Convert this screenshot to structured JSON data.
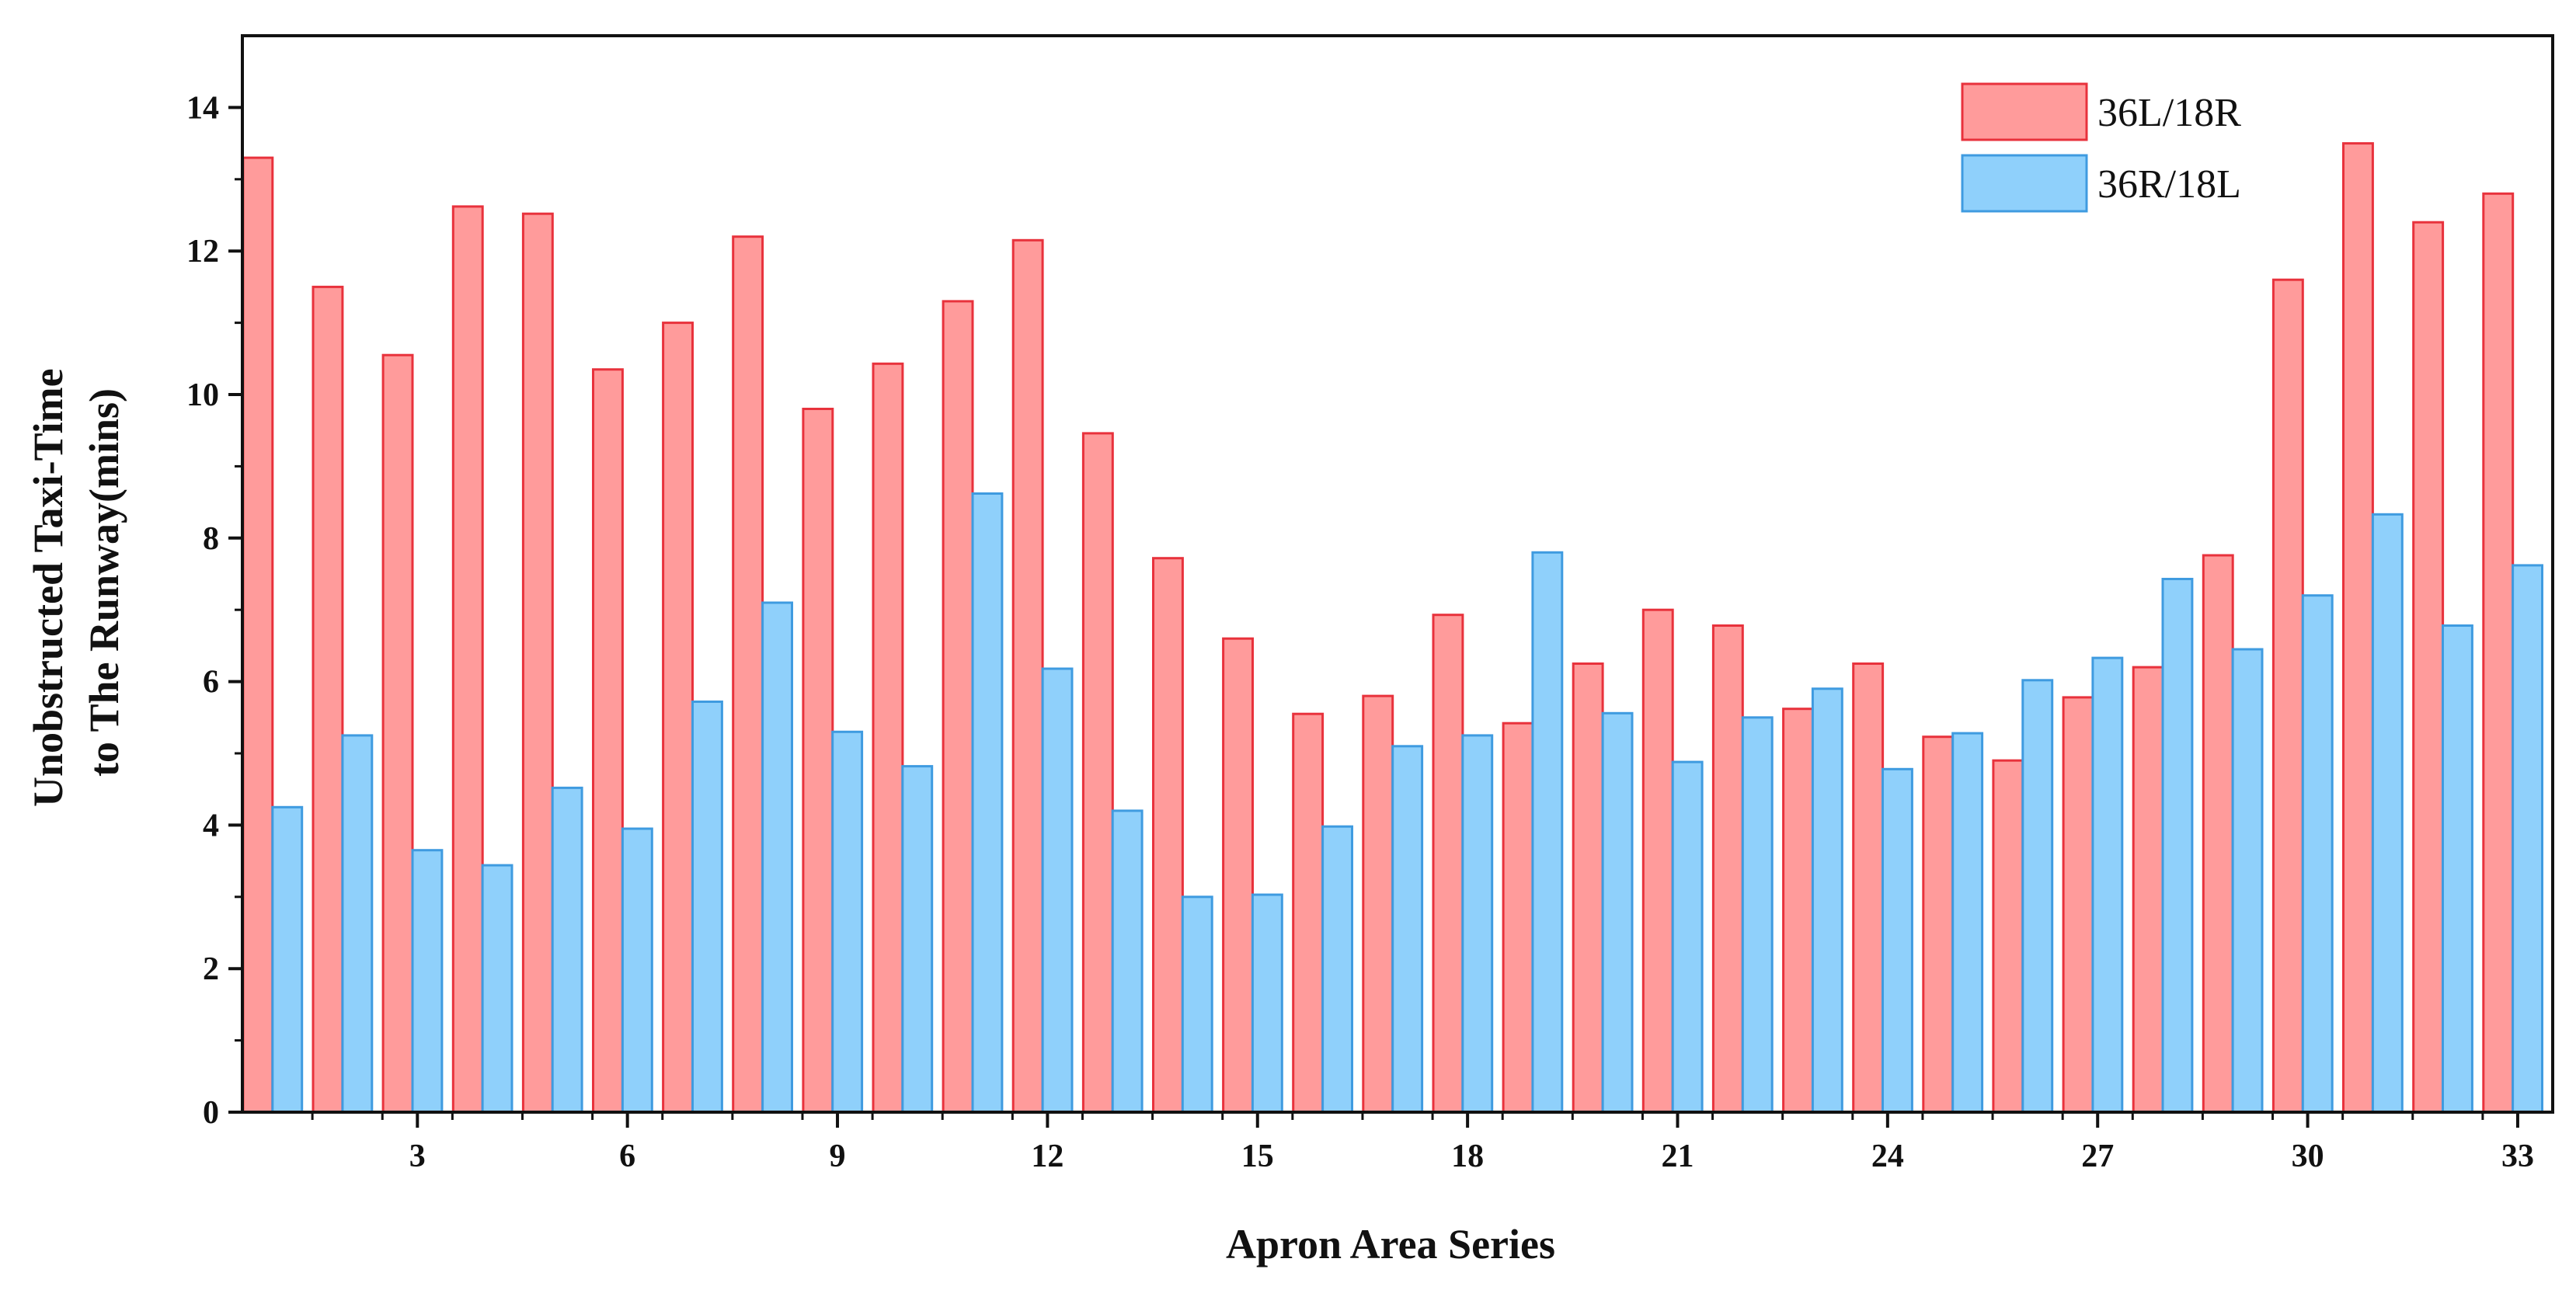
{
  "chart_data": {
    "type": "bar",
    "xlabel": "Apron Area Series",
    "ylabel_lines": [
      "Unobstructed Taxi-Time",
      "to The Runway(mins)"
    ],
    "ylim": [
      0,
      15
    ],
    "yticks": [
      0,
      2,
      4,
      6,
      8,
      10,
      12,
      14
    ],
    "ytick_labels": [
      "0",
      "2",
      "4",
      "6",
      "8",
      "10",
      "12",
      "14"
    ],
    "xtick_labels": [
      "3",
      "6",
      "9",
      "12",
      "15",
      "18",
      "21",
      "24",
      "27",
      "30",
      "33"
    ],
    "categories": [
      1,
      2,
      3,
      4,
      5,
      6,
      7,
      8,
      9,
      10,
      11,
      12,
      13,
      14,
      15,
      16,
      17,
      18,
      19,
      20,
      21,
      22,
      23,
      24,
      25,
      26,
      27,
      28,
      29,
      30,
      31,
      32,
      33
    ],
    "series": [
      {
        "name": "36L/18R",
        "fill": "#ff9b9b",
        "stroke": "#e8323c",
        "values": [
          13.3,
          11.5,
          10.55,
          12.62,
          12.52,
          10.35,
          11.0,
          12.2,
          9.8,
          10.43,
          11.3,
          12.15,
          9.46,
          7.72,
          6.6,
          5.55,
          5.8,
          6.93,
          5.42,
          6.25,
          7.0,
          6.78,
          5.62,
          6.25,
          5.23,
          4.9,
          5.78,
          6.2,
          7.76,
          11.6,
          13.5,
          12.4,
          12.8
        ]
      },
      {
        "name": "36R/18L",
        "fill": "#8fd0fb",
        "stroke": "#3f9be0",
        "values": [
          4.25,
          5.25,
          3.65,
          3.44,
          4.52,
          3.95,
          5.72,
          7.1,
          5.3,
          4.82,
          8.62,
          6.18,
          4.2,
          3.0,
          3.03,
          3.98,
          5.1,
          5.25,
          7.8,
          5.56,
          4.88,
          5.5,
          5.9,
          4.78,
          5.28,
          6.02,
          6.33,
          7.43,
          6.45,
          7.2,
          8.33,
          6.78,
          7.62
        ]
      }
    ],
    "legend_position": "top-right",
    "grid": false
  }
}
